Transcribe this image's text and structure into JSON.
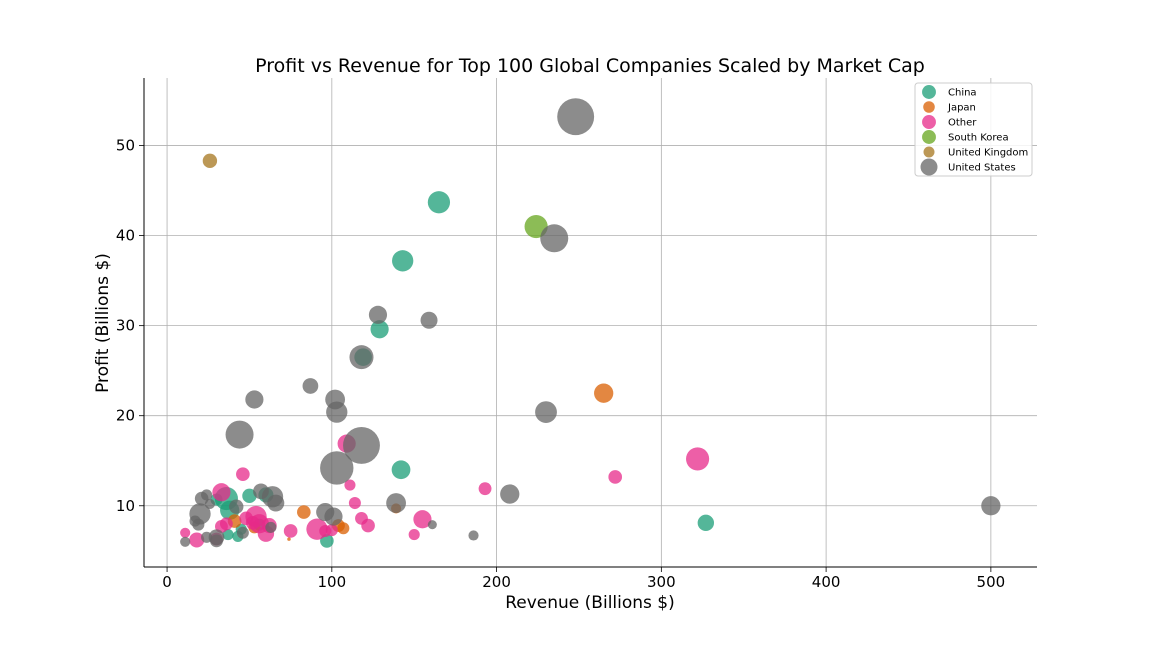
{
  "chart_data": {
    "type": "scatter",
    "title": "Profit vs Revenue for Top 100 Global Companies Scaled by Market Cap",
    "xlabel": "Revenue (Billions $)",
    "ylabel": "Profit (Billions $)",
    "xlim": [
      -14,
      528
    ],
    "ylim": [
      3.2,
      57.5
    ],
    "xticks": [
      0,
      100,
      200,
      300,
      400,
      500
    ],
    "yticks": [
      10,
      20,
      30,
      40,
      50
    ],
    "grid": true,
    "legend_position": "top-right",
    "size_encoding": "Market Cap",
    "series": [
      {
        "name": "China",
        "color": "#1b9e77",
        "points": [
          {
            "x": 165,
            "y": 43.7,
            "s": 120
          },
          {
            "x": 143,
            "y": 37.2,
            "s": 110
          },
          {
            "x": 129,
            "y": 29.6,
            "s": 80
          },
          {
            "x": 119,
            "y": 26.5,
            "s": 75
          },
          {
            "x": 142,
            "y": 14.0,
            "s": 85
          },
          {
            "x": 327,
            "y": 8.1,
            "s": 65
          },
          {
            "x": 36,
            "y": 10.8,
            "s": 130
          },
          {
            "x": 38,
            "y": 9.5,
            "s": 90
          },
          {
            "x": 50,
            "y": 11.1,
            "s": 50
          },
          {
            "x": 97,
            "y": 6.1,
            "s": 45
          },
          {
            "x": 60,
            "y": 11.2,
            "s": 55
          },
          {
            "x": 43,
            "y": 6.6,
            "s": 30
          },
          {
            "x": 37,
            "y": 6.8,
            "s": 30
          },
          {
            "x": 30,
            "y": 10.7,
            "s": 35
          },
          {
            "x": 56,
            "y": 7.9,
            "s": 35
          },
          {
            "x": 45,
            "y": 7.4,
            "s": 30
          }
        ]
      },
      {
        "name": "Japan",
        "color": "#d95f02",
        "points": [
          {
            "x": 265,
            "y": 22.5,
            "s": 90
          },
          {
            "x": 83,
            "y": 9.3,
            "s": 45
          },
          {
            "x": 104,
            "y": 7.8,
            "s": 40
          },
          {
            "x": 107,
            "y": 7.5,
            "s": 35
          },
          {
            "x": 139,
            "y": 9.7,
            "s": 25
          },
          {
            "x": 41,
            "y": 8.3,
            "s": 45
          },
          {
            "x": 53,
            "y": 7.6,
            "s": 35
          },
          {
            "x": 74,
            "y": 6.3,
            "s": 3
          }
        ]
      },
      {
        "name": "Other",
        "color": "#e7298a",
        "points": [
          {
            "x": 322,
            "y": 15.2,
            "s": 130
          },
          {
            "x": 109,
            "y": 16.9,
            "s": 80
          },
          {
            "x": 272,
            "y": 13.2,
            "s": 45
          },
          {
            "x": 46,
            "y": 13.5,
            "s": 45
          },
          {
            "x": 193,
            "y": 11.9,
            "s": 40
          },
          {
            "x": 111,
            "y": 12.3,
            "s": 30
          },
          {
            "x": 114,
            "y": 10.3,
            "s": 35
          },
          {
            "x": 33,
            "y": 11.5,
            "s": 80
          },
          {
            "x": 155,
            "y": 8.5,
            "s": 80
          },
          {
            "x": 118,
            "y": 8.6,
            "s": 40
          },
          {
            "x": 122,
            "y": 7.8,
            "s": 45
          },
          {
            "x": 91,
            "y": 7.4,
            "s": 110
          },
          {
            "x": 96,
            "y": 7.2,
            "s": 35
          },
          {
            "x": 100,
            "y": 7.3,
            "s": 35
          },
          {
            "x": 150,
            "y": 6.8,
            "s": 30
          },
          {
            "x": 75,
            "y": 7.2,
            "s": 45
          },
          {
            "x": 54,
            "y": 8.8,
            "s": 110
          },
          {
            "x": 48,
            "y": 8.6,
            "s": 45
          },
          {
            "x": 56,
            "y": 8.0,
            "s": 90
          },
          {
            "x": 62,
            "y": 7.8,
            "s": 55
          },
          {
            "x": 60,
            "y": 6.9,
            "s": 65
          },
          {
            "x": 33,
            "y": 7.7,
            "s": 40
          },
          {
            "x": 36,
            "y": 8.0,
            "s": 40
          },
          {
            "x": 18,
            "y": 6.2,
            "s": 55
          },
          {
            "x": 11,
            "y": 7.0,
            "s": 25
          },
          {
            "x": 30,
            "y": 6.3,
            "s": 40
          },
          {
            "x": 52,
            "y": 8.1,
            "s": 45
          }
        ]
      },
      {
        "name": "South Korea",
        "color": "#66a61e",
        "points": [
          {
            "x": 224,
            "y": 41.0,
            "s": 130
          }
        ]
      },
      {
        "name": "United Kingdom",
        "color": "#a6761d",
        "points": [
          {
            "x": 26,
            "y": 48.3,
            "s": 50
          }
        ]
      },
      {
        "name": "United States",
        "color": "#666666",
        "points": [
          {
            "x": 248,
            "y": 53.2,
            "s": 330
          },
          {
            "x": 235,
            "y": 39.7,
            "s": 190
          },
          {
            "x": 128,
            "y": 31.2,
            "s": 80
          },
          {
            "x": 159,
            "y": 30.6,
            "s": 70
          },
          {
            "x": 118,
            "y": 26.5,
            "s": 140
          },
          {
            "x": 87,
            "y": 23.3,
            "s": 60
          },
          {
            "x": 102,
            "y": 21.8,
            "s": 95
          },
          {
            "x": 103,
            "y": 20.4,
            "s": 110
          },
          {
            "x": 230,
            "y": 20.4,
            "s": 115
          },
          {
            "x": 53,
            "y": 21.8,
            "s": 80
          },
          {
            "x": 44,
            "y": 17.9,
            "s": 190
          },
          {
            "x": 118,
            "y": 16.7,
            "s": 330
          },
          {
            "x": 103,
            "y": 14.2,
            "s": 270
          },
          {
            "x": 208,
            "y": 11.3,
            "s": 90
          },
          {
            "x": 500,
            "y": 10.0,
            "s": 90
          },
          {
            "x": 139,
            "y": 10.3,
            "s": 95
          },
          {
            "x": 96,
            "y": 9.3,
            "s": 80
          },
          {
            "x": 101,
            "y": 8.8,
            "s": 80
          },
          {
            "x": 64,
            "y": 11.0,
            "s": 110
          },
          {
            "x": 66,
            "y": 10.3,
            "s": 70
          },
          {
            "x": 57,
            "y": 11.6,
            "s": 60
          },
          {
            "x": 20,
            "y": 9.1,
            "s": 110
          },
          {
            "x": 21,
            "y": 10.8,
            "s": 45
          },
          {
            "x": 24,
            "y": 11.2,
            "s": 30
          },
          {
            "x": 26,
            "y": 10.2,
            "s": 25
          },
          {
            "x": 17,
            "y": 8.3,
            "s": 30
          },
          {
            "x": 19,
            "y": 7.9,
            "s": 35
          },
          {
            "x": 30,
            "y": 6.5,
            "s": 60
          },
          {
            "x": 30,
            "y": 6.1,
            "s": 40
          },
          {
            "x": 24,
            "y": 6.5,
            "s": 30
          },
          {
            "x": 11,
            "y": 6.0,
            "s": 25
          },
          {
            "x": 46,
            "y": 7.0,
            "s": 35
          },
          {
            "x": 161,
            "y": 7.9,
            "s": 20
          },
          {
            "x": 186,
            "y": 6.7,
            "s": 25
          },
          {
            "x": 42,
            "y": 9.9,
            "s": 50
          },
          {
            "x": 63,
            "y": 7.6,
            "s": 30
          }
        ]
      }
    ]
  }
}
